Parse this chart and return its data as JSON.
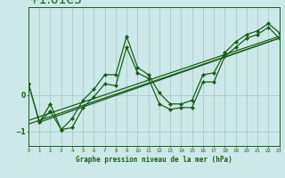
{
  "title": "Graphe pression niveau de la mer (hPa)",
  "bg_color": "#cce8e8",
  "grid_color": "#aacccc",
  "line_color": "#1a5c1a",
  "x_min": 0,
  "x_max": 23,
  "y_min": 1008.6,
  "y_max": 1012.4,
  "y_ticks": [
    1009,
    1010
  ],
  "hours": [
    0,
    1,
    2,
    3,
    4,
    5,
    6,
    7,
    8,
    9,
    10,
    11,
    12,
    13,
    14,
    15,
    16,
    17,
    18,
    19,
    20,
    21,
    22,
    23
  ],
  "series1": [
    1010.3,
    1009.25,
    1009.55,
    1009.05,
    1009.1,
    1009.65,
    1009.95,
    1010.3,
    1010.25,
    1011.3,
    1010.6,
    1010.45,
    1009.75,
    1009.6,
    1009.65,
    1009.65,
    1010.35,
    1010.35,
    1011.05,
    1011.3,
    1011.55,
    1011.65,
    1011.85,
    1011.55
  ],
  "series2": [
    1010.3,
    1009.25,
    1009.75,
    1009.05,
    1009.35,
    1009.85,
    1010.15,
    1010.55,
    1010.55,
    1011.6,
    1010.75,
    1010.55,
    1010.05,
    1009.75,
    1009.75,
    1009.85,
    1010.55,
    1010.6,
    1011.15,
    1011.45,
    1011.65,
    1011.75,
    1011.95,
    1011.7
  ],
  "trend1_x": [
    0,
    23
  ],
  "trend1_y": [
    1009.3,
    1011.6
  ],
  "trend2_x": [
    0,
    23
  ],
  "trend2_y": [
    1009.2,
    1011.55
  ],
  "trend3_x": [
    1,
    23
  ],
  "trend3_y": [
    1009.25,
    1011.55
  ]
}
